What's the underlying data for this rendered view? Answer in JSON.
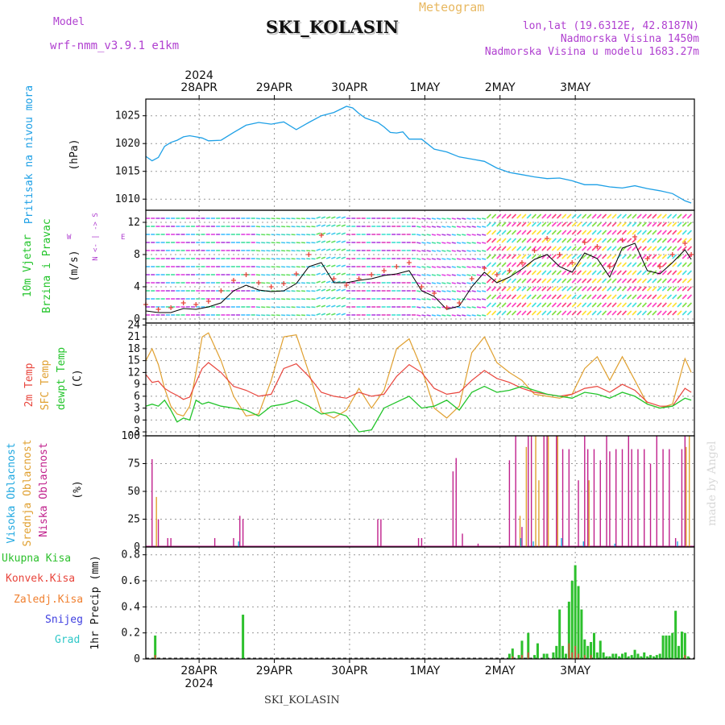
{
  "header": {
    "model_label": "Model",
    "model_name": "wrf-nmm_v3.9.1  e1km",
    "chart_kind": "Meteogram",
    "station": "SKI_KOLASIN",
    "coords": "lon,lat (19.6312E, 42.8187N)",
    "elevation": "Nadmorska Visina 1450m",
    "model_elevation": "Nadmorska Visina u modelu 1683.27m",
    "credit": "made by Angel",
    "footer_station": "SKI_KOLASIN"
  },
  "colors": {
    "pressure": "#1ea0e6",
    "temp2m": "#e8453c",
    "sfc_temp": "#e0a030",
    "dewpoint": "#22c42a",
    "cloud_high": "#20a8e0",
    "cloud_mid": "#e0a030",
    "cloud_low": "#c0208c",
    "precip_total": "#2cc02c",
    "precip_conv": "#e8453c",
    "wind_speed": "#000000",
    "wind_gust": "#e8453c",
    "purple_text": "#b040d0"
  },
  "chart_data": [
    {
      "id": "pressure",
      "type": "line",
      "ylabel_left": "Pritisak na nivou mora",
      "unit": "(hPa)",
      "yticks": [
        1010,
        1015,
        1020,
        1025
      ],
      "ylim": [
        1008,
        1028
      ],
      "x_hours": [
        0,
        2,
        4,
        6,
        8,
        10,
        12,
        14,
        16,
        18,
        20,
        24,
        28,
        32,
        36,
        40,
        44,
        48,
        52,
        56,
        60,
        64,
        66,
        68,
        70,
        72,
        74,
        76,
        78,
        80,
        82,
        84,
        88,
        92,
        96,
        100,
        104,
        108,
        112,
        116,
        120,
        124,
        128,
        132,
        136,
        140,
        144,
        148,
        152,
        156,
        160,
        164,
        168,
        172,
        174
      ],
      "values": [
        1017.7,
        1016.9,
        1017.5,
        1019.5,
        1020.2,
        1020.6,
        1021.2,
        1021.4,
        1021.2,
        1021.0,
        1020.5,
        1020.6,
        1022.0,
        1023.3,
        1023.8,
        1023.5,
        1023.9,
        1022.5,
        1023.8,
        1025.0,
        1025.6,
        1026.7,
        1026.4,
        1025.4,
        1024.6,
        1024.2,
        1023.8,
        1023.0,
        1022.0,
        1021.9,
        1022.1,
        1020.8,
        1020.8,
        1019.0,
        1018.5,
        1017.6,
        1017.2,
        1016.8,
        1015.6,
        1014.8,
        1014.4,
        1014.0,
        1013.7,
        1013.8,
        1013.3,
        1012.6,
        1012.6,
        1012.2,
        1012.0,
        1012.4,
        1011.9,
        1011.5,
        1011.0,
        1009.7,
        1009.3
      ]
    },
    {
      "id": "wind",
      "type": "line",
      "ylabel_left": "10m Vjetar",
      "ylabel_left2": "Brzina i Pravac",
      "unit": "(m/s)",
      "compass_row1": "N",
      "compass_row2": "W  <- | ->  E",
      "compass_row3": "S",
      "yticks": [
        0,
        4,
        8,
        12
      ],
      "ylim": [
        -0.5,
        13.5
      ],
      "x_hours": [
        0,
        4,
        8,
        12,
        16,
        20,
        24,
        28,
        32,
        36,
        40,
        44,
        48,
        52,
        56,
        60,
        64,
        68,
        72,
        76,
        80,
        84,
        88,
        92,
        96,
        100,
        104,
        108,
        112,
        116,
        120,
        124,
        128,
        132,
        136,
        140,
        144,
        148,
        152,
        156,
        160,
        164,
        168,
        172,
        174
      ],
      "speed": [
        1.0,
        0.8,
        0.8,
        1.3,
        1.2,
        1.5,
        2.0,
        3.5,
        4.2,
        3.6,
        3.4,
        3.5,
        4.4,
        6.5,
        7.0,
        4.5,
        4.5,
        4.8,
        5.0,
        5.4,
        5.6,
        6.0,
        3.5,
        2.8,
        1.2,
        1.6,
        4.0,
        5.8,
        4.5,
        5.2,
        6.2,
        7.4,
        8.0,
        6.5,
        5.8,
        8.2,
        7.5,
        5.2,
        8.8,
        9.4,
        6.0,
        5.6,
        7.0,
        8.6,
        7.4
      ],
      "gust": [
        1.8,
        1.2,
        1.4,
        2.0,
        1.8,
        2.2,
        3.5,
        4.8,
        5.5,
        4.5,
        4.0,
        4.4,
        5.6,
        8.0,
        10.4,
        5.0,
        4.2,
        5.0,
        5.5,
        6.0,
        6.5,
        7.0,
        4.0,
        3.2,
        1.4,
        2.0,
        5.0,
        6.3,
        5.5,
        6.0,
        7.0,
        8.5,
        10.0,
        8.0,
        7.0,
        9.5,
        9.0,
        6.5,
        9.8,
        10.2,
        7.5,
        6.5,
        8.0,
        9.4,
        8.0
      ],
      "section_palette": {
        "p1": [
          "#e040e0",
          "#b040e0",
          "#40c0ff",
          "#40e0a0"
        ],
        "p2": [
          "#40d8c0",
          "#60e060",
          "#40c8f0"
        ],
        "p3": [
          "#b040e0",
          "#e040c0",
          "#40e0d0"
        ],
        "p4": [
          "#ff4080",
          "#ffe030",
          "#40e0e0",
          "#80e040",
          "#ff40c0"
        ]
      }
    },
    {
      "id": "temperature",
      "type": "line",
      "ylabel_left": "2m Temp",
      "ylabel_left2": "SFC Temp",
      "ylabel_left3": "dewpt Temp",
      "unit": "(C)",
      "yticks": [
        -3,
        0,
        3,
        6,
        9,
        12,
        15,
        18,
        21,
        24
      ],
      "ylim": [
        -4,
        24.5
      ],
      "x_hours": [
        0,
        2,
        4,
        6,
        8,
        10,
        12,
        14,
        16,
        18,
        20,
        24,
        28,
        32,
        36,
        40,
        44,
        48,
        52,
        56,
        60,
        64,
        68,
        72,
        76,
        80,
        84,
        88,
        92,
        96,
        100,
        104,
        108,
        112,
        116,
        120,
        124,
        128,
        132,
        136,
        140,
        144,
        148,
        152,
        156,
        160,
        164,
        168,
        172,
        174
      ],
      "temp2m": [
        11.5,
        9.5,
        9.8,
        8.0,
        7.0,
        6.2,
        5.2,
        5.8,
        9.5,
        13.0,
        14.5,
        12.0,
        8.5,
        7.5,
        6.0,
        6.5,
        13.0,
        14.2,
        11.0,
        7.0,
        6.0,
        5.5,
        7.0,
        6.0,
        6.5,
        11.0,
        14.0,
        12.0,
        8.0,
        6.5,
        7.0,
        10.0,
        12.5,
        10.5,
        9.5,
        8.0,
        7.0,
        6.5,
        6.0,
        6.5,
        8.0,
        8.5,
        7.0,
        9.0,
        7.5,
        4.5,
        3.5,
        3.5,
        8.0,
        7.0
      ],
      "sfc": [
        15.0,
        18.0,
        14.0,
        8.0,
        3.5,
        1.5,
        1.0,
        3.5,
        12.0,
        21.0,
        22.0,
        15.0,
        6.0,
        1.0,
        1.5,
        10.0,
        21.0,
        21.5,
        12.0,
        2.0,
        0.5,
        2.5,
        8.0,
        3.0,
        7.5,
        18.0,
        20.5,
        13.0,
        3.0,
        0.5,
        3.5,
        17.0,
        21.0,
        14.5,
        12.0,
        10.0,
        6.5,
        6.0,
        5.5,
        6.5,
        13.0,
        16.0,
        10.0,
        16.0,
        10.0,
        4.0,
        3.0,
        4.0,
        15.5,
        12.0
      ],
      "dewpoint": [
        3.5,
        4.0,
        3.5,
        5.0,
        2.5,
        -0.5,
        0.5,
        0.0,
        5.0,
        4.0,
        4.5,
        3.5,
        3.0,
        2.5,
        1.0,
        3.5,
        4.0,
        5.0,
        3.5,
        1.5,
        2.0,
        1.0,
        -3.0,
        -2.5,
        3.0,
        4.5,
        6.0,
        3.0,
        3.5,
        5.0,
        2.5,
        7.0,
        8.5,
        7.0,
        7.5,
        8.5,
        7.5,
        6.5,
        6.0,
        5.5,
        7.0,
        6.5,
        5.5,
        7.0,
        6.0,
        4.0,
        3.0,
        3.5,
        5.5,
        5.0
      ]
    },
    {
      "id": "clouds",
      "type": "bar",
      "ylabel_left": "Visoka Oblacnost",
      "ylabel_left2": "Srednja Oblacnost",
      "ylabel_left3": "Niska Oblacnost",
      "unit": "(%)",
      "yticks": [
        0,
        25,
        50,
        75,
        100
      ],
      "ylim": [
        0,
        100
      ],
      "low_hours": [
        2,
        4,
        7,
        8,
        22,
        28,
        30,
        31,
        74,
        75,
        87,
        88,
        98,
        99,
        101,
        106,
        116,
        118,
        120,
        122,
        123,
        127,
        128,
        131,
        133,
        135,
        138,
        140,
        141,
        143,
        145,
        147,
        148,
        150,
        152,
        154,
        155,
        157,
        159,
        161,
        163,
        165,
        167,
        169,
        171,
        172
      ],
      "low_values": [
        79,
        25,
        8,
        8,
        8,
        8,
        28,
        25,
        25,
        25,
        8,
        8,
        68,
        80,
        12,
        3,
        78,
        100,
        18,
        100,
        100,
        100,
        100,
        100,
        88,
        88,
        60,
        100,
        88,
        88,
        78,
        100,
        86,
        88,
        88,
        100,
        88,
        88,
        88,
        75,
        100,
        88,
        88,
        8,
        88,
        100
      ],
      "mid_hours": [
        3,
        119,
        121,
        124,
        125,
        128,
        131,
        141,
        172,
        173
      ],
      "mid_values": [
        45,
        28,
        90,
        100,
        60,
        100,
        100,
        60,
        90,
        100
      ],
      "high_hours": [
        30,
        120,
        124,
        133,
        140,
        150,
        170
      ],
      "high_values": [
        5,
        8,
        5,
        8,
        5,
        3,
        5
      ]
    },
    {
      "id": "precip",
      "type": "bar",
      "ylabel_left": "1hr Precip (mm)",
      "legend": [
        "Ukupna Kisa",
        "Konvek.Kisa",
        "Zaledj.Kisa",
        "Snijeg",
        "Grad"
      ],
      "legend_colors": [
        "#2cc02c",
        "#e8453c",
        "#f08030",
        "#4040e0",
        "#30c8c8"
      ],
      "yticks": [
        0,
        0.2,
        0.4,
        0.6,
        0.8
      ],
      "ylim": [
        0,
        0.86
      ],
      "total_hours": [
        3,
        31,
        116,
        117,
        119,
        120,
        122,
        124,
        125,
        127,
        128,
        130,
        131,
        132,
        133,
        134,
        135,
        136,
        137,
        138,
        139,
        140,
        141,
        142,
        143,
        144,
        145,
        146,
        147,
        148,
        149,
        150,
        151,
        152,
        153,
        154,
        155,
        156,
        157,
        158,
        159,
        160,
        161,
        162,
        163,
        164,
        165,
        166,
        167,
        168,
        169,
        170,
        171,
        172,
        173
      ],
      "total_values": [
        0.18,
        0.34,
        0.04,
        0.08,
        0.03,
        0.14,
        0.2,
        0.03,
        0.12,
        0.04,
        0.04,
        0.05,
        0.1,
        0.38,
        0.1,
        0.04,
        0.44,
        0.6,
        0.72,
        0.56,
        0.38,
        0.15,
        0.1,
        0.13,
        0.2,
        0.05,
        0.14,
        0.05,
        0.02,
        0.02,
        0.04,
        0.04,
        0.02,
        0.04,
        0.05,
        0.02,
        0.03,
        0.07,
        0.04,
        0.02,
        0.05,
        0.02,
        0.03,
        0.02,
        0.03,
        0.04,
        0.18,
        0.18,
        0.18,
        0.2,
        0.37,
        0.1,
        0.21,
        0.2,
        0.02
      ],
      "conv_hours": [
        3,
        117,
        120,
        122,
        135,
        136,
        137,
        138,
        140,
        142,
        172
      ],
      "conv_values": [
        0.03,
        0.02,
        0.03,
        0.05,
        0.12,
        0.05,
        0.1,
        0.04,
        0.03,
        0.03,
        0.03
      ]
    }
  ],
  "time_axis": {
    "top_year": "2024",
    "bottom_year": "2024",
    "labels": [
      "28APR",
      "29APR",
      "30APR",
      "1MAY",
      "2MAY",
      "3MAY"
    ],
    "label_hours": [
      17,
      41,
      65,
      89,
      113,
      137
    ],
    "total_hours": 175
  }
}
